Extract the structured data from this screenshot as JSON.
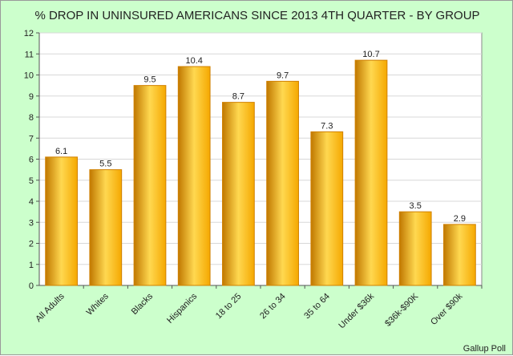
{
  "chart_data": {
    "type": "bar",
    "title": "% DROP IN UNINSURED AMERICANS SINCE 2013 4TH QUARTER - BY GROUP",
    "xlabel": "",
    "ylabel": "",
    "categories": [
      "All Adults",
      "Whites",
      "Blacks",
      "Hispanics",
      "18 to 25",
      "26 to 34",
      "35 to 64",
      "Under $36k",
      "$36k-$90K",
      "Over $90k"
    ],
    "values": [
      6.1,
      5.5,
      9.5,
      10.4,
      8.7,
      9.7,
      7.3,
      10.7,
      3.5,
      2.9
    ],
    "data_labels": [
      "6.1",
      "5.5",
      "9.5",
      "10.4",
      "8.7",
      "9.7",
      "7.3",
      "10.7",
      "3.5",
      "2.9"
    ],
    "ylim": [
      0,
      12
    ],
    "yticks": [
      0,
      1,
      2,
      3,
      4,
      5,
      6,
      7,
      8,
      9,
      10,
      11,
      12
    ],
    "grid": true,
    "legend": "none",
    "source": "Gallup Poll",
    "colors": {
      "background": "#ccffcc",
      "plot_background": "#ffffff",
      "bar_edge": "#d08000",
      "bar_light": "#ffd850",
      "bar_mid": "#f5a800",
      "bar_dark": "#c07800",
      "grid": "#d8d8d8"
    }
  }
}
